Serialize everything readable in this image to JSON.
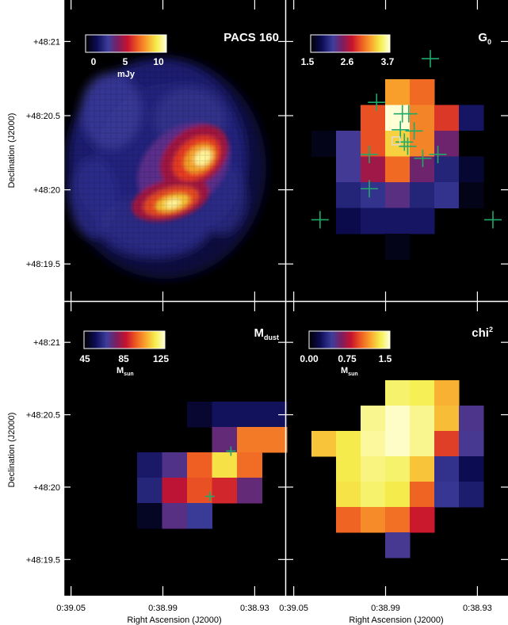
{
  "chart_data": [
    {
      "type": "heatmap",
      "panel": "top-left",
      "title": "PACS 160",
      "colorbar": {
        "ticks": [
          "0",
          "5",
          "10"
        ],
        "unit": "mJy",
        "range": [
          0,
          12
        ]
      },
      "peaks": [
        {
          "ra": "0:38.978",
          "dec": 20.6,
          "value": 11
        },
        {
          "ra": "0:38.992",
          "dec": 20.0,
          "value": 10
        }
      ]
    },
    {
      "type": "heatmap",
      "panel": "top-right",
      "title": "G",
      "title_sub": "0",
      "colorbar": {
        "ticks": [
          "1.5",
          "2.6",
          "3.7"
        ],
        "range": [
          1.5,
          3.9
        ]
      },
      "grid": {
        "ra_start": "0:39.003",
        "ra_step": "0.0078",
        "dec_top": 20.92,
        "dec_step": 0.1389,
        "cells": [
          [
            null,
            null,
            null,
            3.3,
            3.1,
            null,
            null
          ],
          [
            null,
            null,
            3.0,
            3.9,
            3.2,
            2.9,
            1.9
          ],
          [
            1.6,
            2.2,
            3.0,
            3.5,
            3.2,
            2.4,
            1.5
          ],
          [
            null,
            2.2,
            2.6,
            3.1,
            2.4,
            2.0,
            1.7
          ],
          [
            null,
            2.0,
            2.1,
            2.3,
            2.0,
            2.1,
            1.6
          ],
          [
            null,
            1.8,
            1.9,
            1.9,
            1.9,
            null,
            null
          ],
          [
            null,
            null,
            null,
            1.6,
            null,
            null,
            null
          ]
        ]
      },
      "markers": {
        "type": "cross",
        "color": "#1faa6a",
        "points": [
          [
            0.65,
            0.195
          ],
          [
            0.408,
            0.34
          ],
          [
            0.524,
            0.378
          ],
          [
            0.553,
            0.378
          ],
          [
            0.515,
            0.431
          ],
          [
            0.577,
            0.435
          ],
          [
            0.533,
            0.472
          ],
          [
            0.548,
            0.486
          ],
          [
            0.375,
            0.513
          ],
          [
            0.684,
            0.513
          ],
          [
            0.616,
            0.526
          ],
          [
            0.375,
            0.627
          ],
          [
            0.153,
            0.73
          ],
          [
            0.932,
            0.73
          ]
        ]
      },
      "box": [
        0.495,
        0.468
      ]
    },
    {
      "type": "heatmap",
      "panel": "bottom-left",
      "title": "M",
      "title_sub": "dust",
      "colorbar": {
        "ticks": [
          "45",
          "85",
          "125"
        ],
        "unit": "M",
        "unit_sub": "sun",
        "range": [
          45,
          130
        ]
      },
      "grid": {
        "cells": [
          [
            52,
            58,
            58,
            58
          ],
          [
            null,
            75,
            104,
            104
          ],
          [
            60,
            72,
            100,
            118,
            102
          ],
          [
            63,
            88,
            98,
            92,
            75
          ],
          [
            50,
            73,
            68,
            null,
            null
          ]
        ],
        "col_offset": [
          2,
          2,
          0,
          0,
          0
        ]
      },
      "markers": {
        "type": "cross",
        "color": "#1faa6a",
        "points": [
          [
            0.755,
            0.508
          ],
          [
            0.66,
            0.662
          ]
        ]
      }
    },
    {
      "type": "heatmap",
      "panel": "bottom-right",
      "title": "chi",
      "title_sup": "2",
      "colorbar": {
        "ticks": [
          "0.00",
          "0.75",
          "1.5"
        ],
        "unit": "M",
        "unit_sub": "sun",
        "range": [
          0,
          1.6
        ]
      },
      "grid": {
        "cells": [
          [
            null,
            null,
            null,
            1.45,
            1.42,
            1.25,
            null
          ],
          [
            null,
            null,
            1.5,
            1.58,
            1.5,
            1.28,
            0.5
          ],
          [
            1.3,
            1.4,
            1.52,
            1.58,
            1.5,
            0.95,
            0.48
          ],
          [
            null,
            1.4,
            1.48,
            1.45,
            1.3,
            0.4,
            0.22
          ],
          [
            null,
            1.38,
            1.45,
            1.4,
            1.05,
            0.42,
            0.3
          ],
          [
            null,
            1.05,
            1.15,
            1.08,
            0.85,
            null,
            null
          ],
          [
            null,
            null,
            null,
            0.48,
            null,
            null,
            null
          ]
        ]
      }
    }
  ],
  "axes": {
    "ylabel": "Declination (J2000)",
    "xlabel": "Right Ascension (J2000)",
    "yticks": [
      {
        "dec": 21.0,
        "label": "+48:21"
      },
      {
        "dec": 20.5,
        "label": "+48:20.5"
      },
      {
        "dec": 20.0,
        "label": "+48:20"
      },
      {
        "dec": 19.5,
        "label": "+48:19.5"
      }
    ],
    "xticks": [
      {
        "ra": 39.05,
        "label": "0:39.05"
      },
      {
        "ra": 38.99,
        "label": "0:38.99"
      },
      {
        "ra": 38.93,
        "label": "0:38.93"
      }
    ],
    "dec_range": [
      19.25,
      21.28
    ],
    "ra_range": [
      39.055,
      38.91
    ]
  },
  "colors": {
    "background": "#000000",
    "frame": "#ffffff",
    "marker": "#1faa6a"
  }
}
